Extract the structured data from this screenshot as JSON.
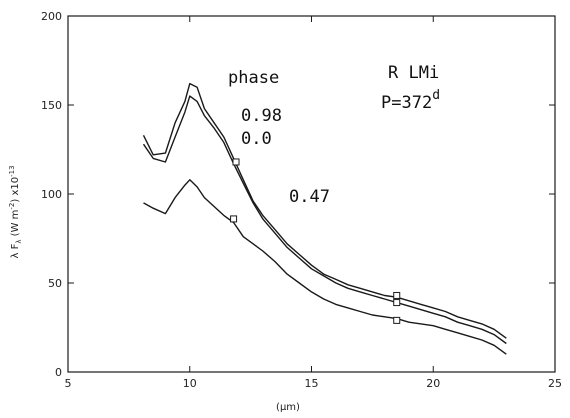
{
  "chart_data": {
    "type": "line",
    "title": "",
    "xlabel": "(μm)",
    "ylabel": "λ F_λ (W m⁻²) ×10⁻¹³",
    "ylabel_parts": {
      "main": "λ F",
      "sub": "λ",
      "units": " (W m",
      "unit_exp": "-2",
      "close": ") x10",
      "scale_exp": "-13"
    },
    "xlim": [
      5,
      25
    ],
    "ylim": [
      0,
      200
    ],
    "xticks": [
      5,
      10,
      15,
      20,
      25
    ],
    "yticks": [
      0,
      50,
      100,
      150,
      200
    ],
    "grid": false,
    "annotations": {
      "phase_label": "phase",
      "phase_98": "0.98",
      "phase_00": "0.0",
      "phase_47": "0.47",
      "star": "R LMi",
      "period": "P=372",
      "period_sup": "d"
    },
    "series": [
      {
        "name": "0.98",
        "x": [
          8.1,
          8.5,
          9.0,
          9.4,
          9.8,
          10.0,
          10.3,
          10.6,
          11.0,
          11.4,
          11.8,
          12.2,
          12.6,
          13.0,
          13.5,
          14.0,
          14.5,
          15.0,
          15.5,
          16.0,
          16.5,
          17.0,
          17.5,
          18.0,
          18.5,
          19.0,
          19.5,
          20.0,
          20.5,
          21.0,
          21.5,
          22.0,
          22.5,
          23.0
        ],
        "y": [
          133,
          122,
          123,
          140,
          152,
          162,
          160,
          148,
          140,
          132,
          120,
          108,
          96,
          88,
          80,
          72,
          66,
          60,
          55,
          52,
          49,
          47,
          45,
          43,
          42,
          40,
          38,
          36,
          34,
          31,
          29,
          27,
          24,
          19
        ]
      },
      {
        "name": "0.0",
        "x": [
          8.1,
          8.5,
          9.0,
          9.4,
          9.8,
          10.0,
          10.3,
          10.6,
          11.0,
          11.4,
          11.8,
          12.2,
          12.6,
          13.0,
          13.5,
          14.0,
          14.5,
          15.0,
          15.5,
          16.0,
          16.5,
          17.0,
          17.5,
          18.0,
          18.5,
          19.0,
          19.5,
          20.0,
          20.5,
          21.0,
          21.5,
          22.0,
          22.5,
          23.0
        ],
        "y": [
          128,
          120,
          118,
          132,
          146,
          155,
          152,
          144,
          137,
          129,
          117,
          106,
          95,
          86,
          78,
          70,
          64,
          58,
          54,
          50,
          47,
          45,
          43,
          41,
          39,
          37,
          35,
          33,
          31,
          28,
          26,
          24,
          21,
          16
        ]
      },
      {
        "name": "0.47",
        "x": [
          8.1,
          8.5,
          9.0,
          9.4,
          9.8,
          10.0,
          10.3,
          10.6,
          11.0,
          11.4,
          11.8,
          12.2,
          12.6,
          13.0,
          13.5,
          14.0,
          14.5,
          15.0,
          15.5,
          16.0,
          16.5,
          17.0,
          17.5,
          18.0,
          18.5,
          19.0,
          19.5,
          20.0,
          20.5,
          21.0,
          21.5,
          22.0,
          22.5,
          23.0
        ],
        "y": [
          95,
          92,
          89,
          98,
          105,
          108,
          104,
          98,
          93,
          88,
          84,
          76,
          72,
          68,
          62,
          55,
          50,
          45,
          41,
          38,
          36,
          34,
          32,
          31,
          30,
          28,
          27,
          26,
          24,
          22,
          20,
          18,
          15,
          10
        ]
      }
    ],
    "markers": [
      {
        "x": 11.9,
        "y": 118
      },
      {
        "x": 11.8,
        "y": 86
      },
      {
        "x": 18.5,
        "y": 43
      },
      {
        "x": 18.5,
        "y": 39
      },
      {
        "x": 18.5,
        "y": 29
      }
    ]
  }
}
